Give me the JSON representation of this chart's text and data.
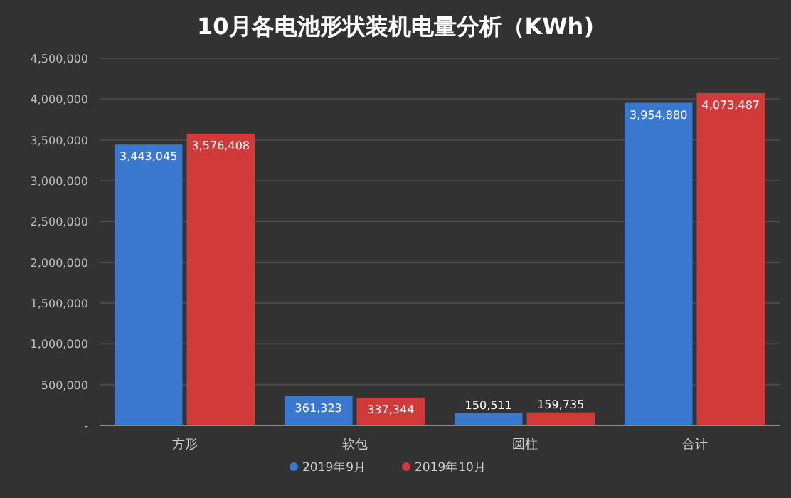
{
  "chart_data": {
    "type": "bar",
    "title": "10月各电池形状装机电量分析（KWh)",
    "categories": [
      "方形",
      "软包",
      "圆柱",
      "合计"
    ],
    "series": [
      {
        "name": "2019年9月",
        "color": "#3a78d0",
        "values": [
          3443045,
          361323,
          150511,
          3954880
        ],
        "value_labels": [
          "3,443,045",
          "361,323",
          "150,511",
          "3,954,880"
        ]
      },
      {
        "name": "2019年10月",
        "color": "#d23a3a",
        "values": [
          3576408,
          337344,
          159735,
          4073487
        ],
        "value_labels": [
          "3,576,408",
          "337,344",
          "159,735",
          "4,073,487"
        ]
      }
    ],
    "ylim": [
      0,
      4500000
    ],
    "yticks": [
      {
        "value": 0,
        "label": "-"
      },
      {
        "value": 500000,
        "label": "500,000"
      },
      {
        "value": 1000000,
        "label": "1,000,000"
      },
      {
        "value": 1500000,
        "label": "1,500,000"
      },
      {
        "value": 2000000,
        "label": "2,000,000"
      },
      {
        "value": 2500000,
        "label": "2,500,000"
      },
      {
        "value": 3000000,
        "label": "3,000,000"
      },
      {
        "value": 3500000,
        "label": "3,500,000"
      },
      {
        "value": 4000000,
        "label": "4,000,000"
      },
      {
        "value": 4500000,
        "label": "4,500,000"
      }
    ],
    "grid": "y",
    "legend": "bottom"
  }
}
